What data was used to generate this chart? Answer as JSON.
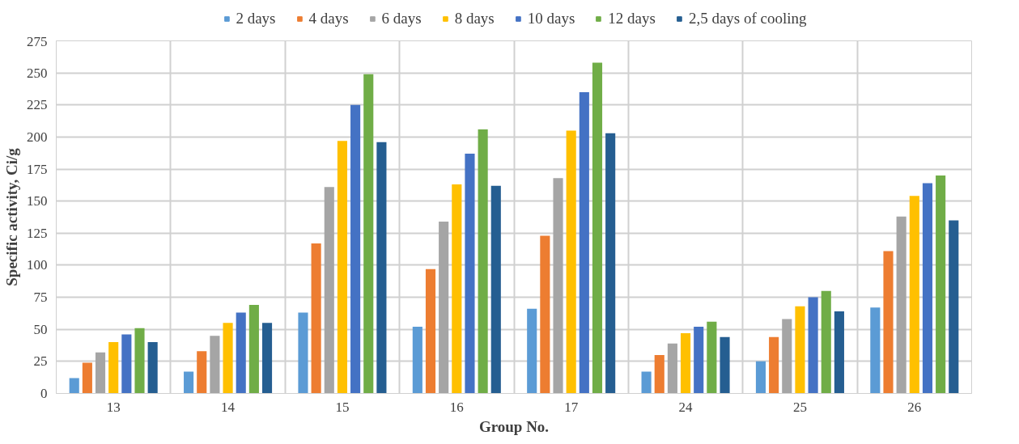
{
  "chart_data": {
    "type": "bar",
    "xlabel": "Group No.",
    "ylabel": "Specific activity, Ci/g",
    "categories": [
      "13",
      "14",
      "15",
      "16",
      "17",
      "24",
      "25",
      "26"
    ],
    "series": [
      {
        "name": "2 days",
        "color": "#5b9bd5",
        "values": [
          12,
          17,
          63,
          52,
          66,
          17,
          25,
          67
        ]
      },
      {
        "name": "4 days",
        "color": "#ed7d31",
        "values": [
          24,
          33,
          117,
          97,
          123,
          30,
          44,
          111
        ]
      },
      {
        "name": "6 days",
        "color": "#a5a5a5",
        "values": [
          32,
          45,
          161,
          134,
          168,
          39,
          58,
          138
        ]
      },
      {
        "name": "8 days",
        "color": "#ffc000",
        "values": [
          40,
          55,
          197,
          163,
          205,
          47,
          68,
          154
        ]
      },
      {
        "name": "10 days",
        "color": "#4472c4",
        "values": [
          46,
          63,
          225,
          187,
          235,
          52,
          75,
          164
        ]
      },
      {
        "name": "12 days",
        "color": "#70ad47",
        "values": [
          51,
          69,
          249,
          206,
          258,
          56,
          80,
          170
        ]
      },
      {
        "name": "2,5 days of cooling",
        "color": "#255e91",
        "values": [
          40,
          55,
          196,
          162,
          203,
          44,
          64,
          135
        ]
      }
    ],
    "ylim": [
      0,
      275
    ],
    "yticks": [
      0,
      25,
      50,
      75,
      100,
      125,
      150,
      175,
      200,
      225,
      250,
      275
    ],
    "grid": true,
    "legend": "top"
  }
}
